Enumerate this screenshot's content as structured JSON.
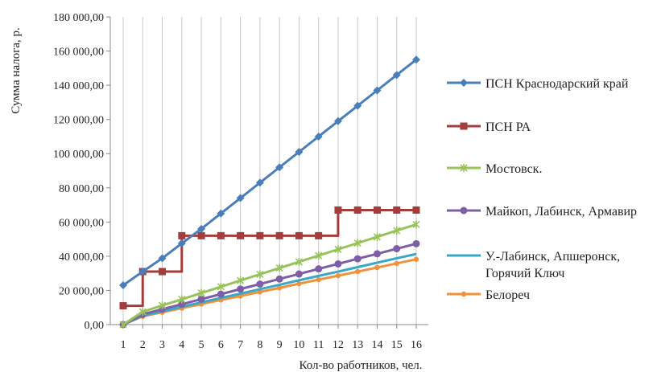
{
  "chart_data": {
    "type": "line",
    "title": "",
    "xlabel": "Кол-во работников, чел.",
    "ylabel": "Сумма налога, р.",
    "x": [
      1,
      2,
      3,
      4,
      5,
      6,
      7,
      8,
      9,
      10,
      11,
      12,
      13,
      14,
      15,
      16
    ],
    "xlim": [
      1,
      16
    ],
    "ylim": [
      0,
      180000
    ],
    "ytick_step": 20000,
    "ytick_labels": [
      "0,00",
      "20 000,00",
      "40 000,00",
      "60 000,00",
      "80 000,00",
      "100 000,00",
      "120 000,00",
      "140 000,00",
      "160 000,00",
      "180 000,00"
    ],
    "grid": "vertical",
    "legend_position": "right",
    "series": [
      {
        "name": "ПСН Краснодарский край",
        "color": "#4a7ebb",
        "marker": "diamond",
        "values": [
          23000,
          31000,
          38800,
          47500,
          56000,
          65000,
          74000,
          83000,
          92000,
          101000,
          110000,
          119000,
          128000,
          137000,
          146000,
          155000
        ]
      },
      {
        "name": "ПСН РА",
        "color": "#a43c3c",
        "marker": "square",
        "step": true,
        "values": [
          11000,
          31000,
          31000,
          52000,
          52000,
          52000,
          52000,
          52000,
          52000,
          52000,
          52000,
          67000,
          67000,
          67000,
          67000,
          67000
        ]
      },
      {
        "name": "Мостовск.",
        "color": "#98c35a",
        "marker": "x",
        "values": [
          0,
          7500,
          11200,
          14800,
          18500,
          22100,
          25800,
          29400,
          33100,
          36700,
          40400,
          44000,
          47700,
          51300,
          55000,
          58600
        ]
      },
      {
        "name": "Майкоп, Лабинск, Армавир",
        "color": "#7d5fa6",
        "marker": "circle",
        "values": [
          0,
          6000,
          9000,
          11900,
          14900,
          17800,
          20800,
          23700,
          26700,
          29600,
          32600,
          35500,
          38500,
          41400,
          44400,
          47300
        ]
      },
      {
        "name": "У.-Лабинск, Апшеронск, Горячий Ключ",
        "color": "#38a8c8",
        "marker": "none",
        "values": [
          0,
          5200,
          7800,
          10400,
          13000,
          15600,
          18100,
          20700,
          23300,
          25900,
          28500,
          31000,
          33600,
          36200,
          38800,
          41300
        ]
      },
      {
        "name": "Белореч",
        "color": "#f0913c",
        "marker": "circle-small",
        "values": [
          0,
          4800,
          7200,
          9600,
          12000,
          14400,
          16700,
          19100,
          21500,
          23900,
          26300,
          28600,
          31000,
          33400,
          35800,
          38200
        ]
      }
    ]
  }
}
